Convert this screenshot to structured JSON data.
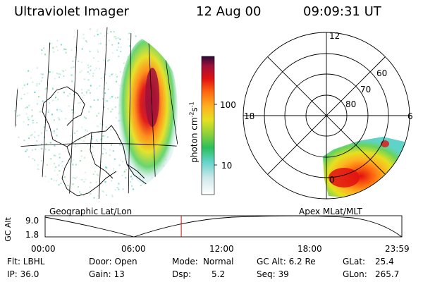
{
  "header": {
    "title": "Ultraviolet Imager",
    "date": "12 Aug 00",
    "time": "09:09:31 UT"
  },
  "geo_panel": {
    "caption": "Geographic Lat/Lon"
  },
  "polar_panel": {
    "caption": "Apex MLat/MLT",
    "mlt_labels": [
      "12",
      "18",
      "6",
      "0"
    ],
    "lat_labels": [
      "60",
      "70",
      "80"
    ]
  },
  "colorbar": {
    "unit_label": "photon cm",
    "unit_exp1": "-2",
    "unit_s": "s",
    "unit_exp2": "-1",
    "ticks": [
      "100",
      "10"
    ],
    "colors": [
      "#ffffff",
      "#cfe8ec",
      "#5fd3c8",
      "#2cbf5a",
      "#8fd23a",
      "#e6e020",
      "#ffb020",
      "#ff6a10",
      "#e01010",
      "#a0103a",
      "#2a0a3a"
    ]
  },
  "timeline": {
    "ylabel": "GC Alt",
    "y_ticks": [
      "9.0",
      "1.8"
    ],
    "x_ticks": [
      "00:00",
      "06:00",
      "12:00",
      "18:00",
      "23:59"
    ],
    "current_time_hours": 9.158
  },
  "info": {
    "flt": "Flt: LBHL",
    "ip": "IP: 36.0",
    "door": "Door: Open",
    "gain": "Gain: 13",
    "mode_label": "Mode:",
    "mode_value": "Normal",
    "dsp_label": "Dsp:",
    "dsp_value": "5.2",
    "gcalt": "GC Alt: 6.2 Re",
    "seq": "Seq: 39",
    "glat_label": "GLat:",
    "glat_value": "25.4",
    "glon_label": "GLon:",
    "glon_value": "265.7"
  }
}
